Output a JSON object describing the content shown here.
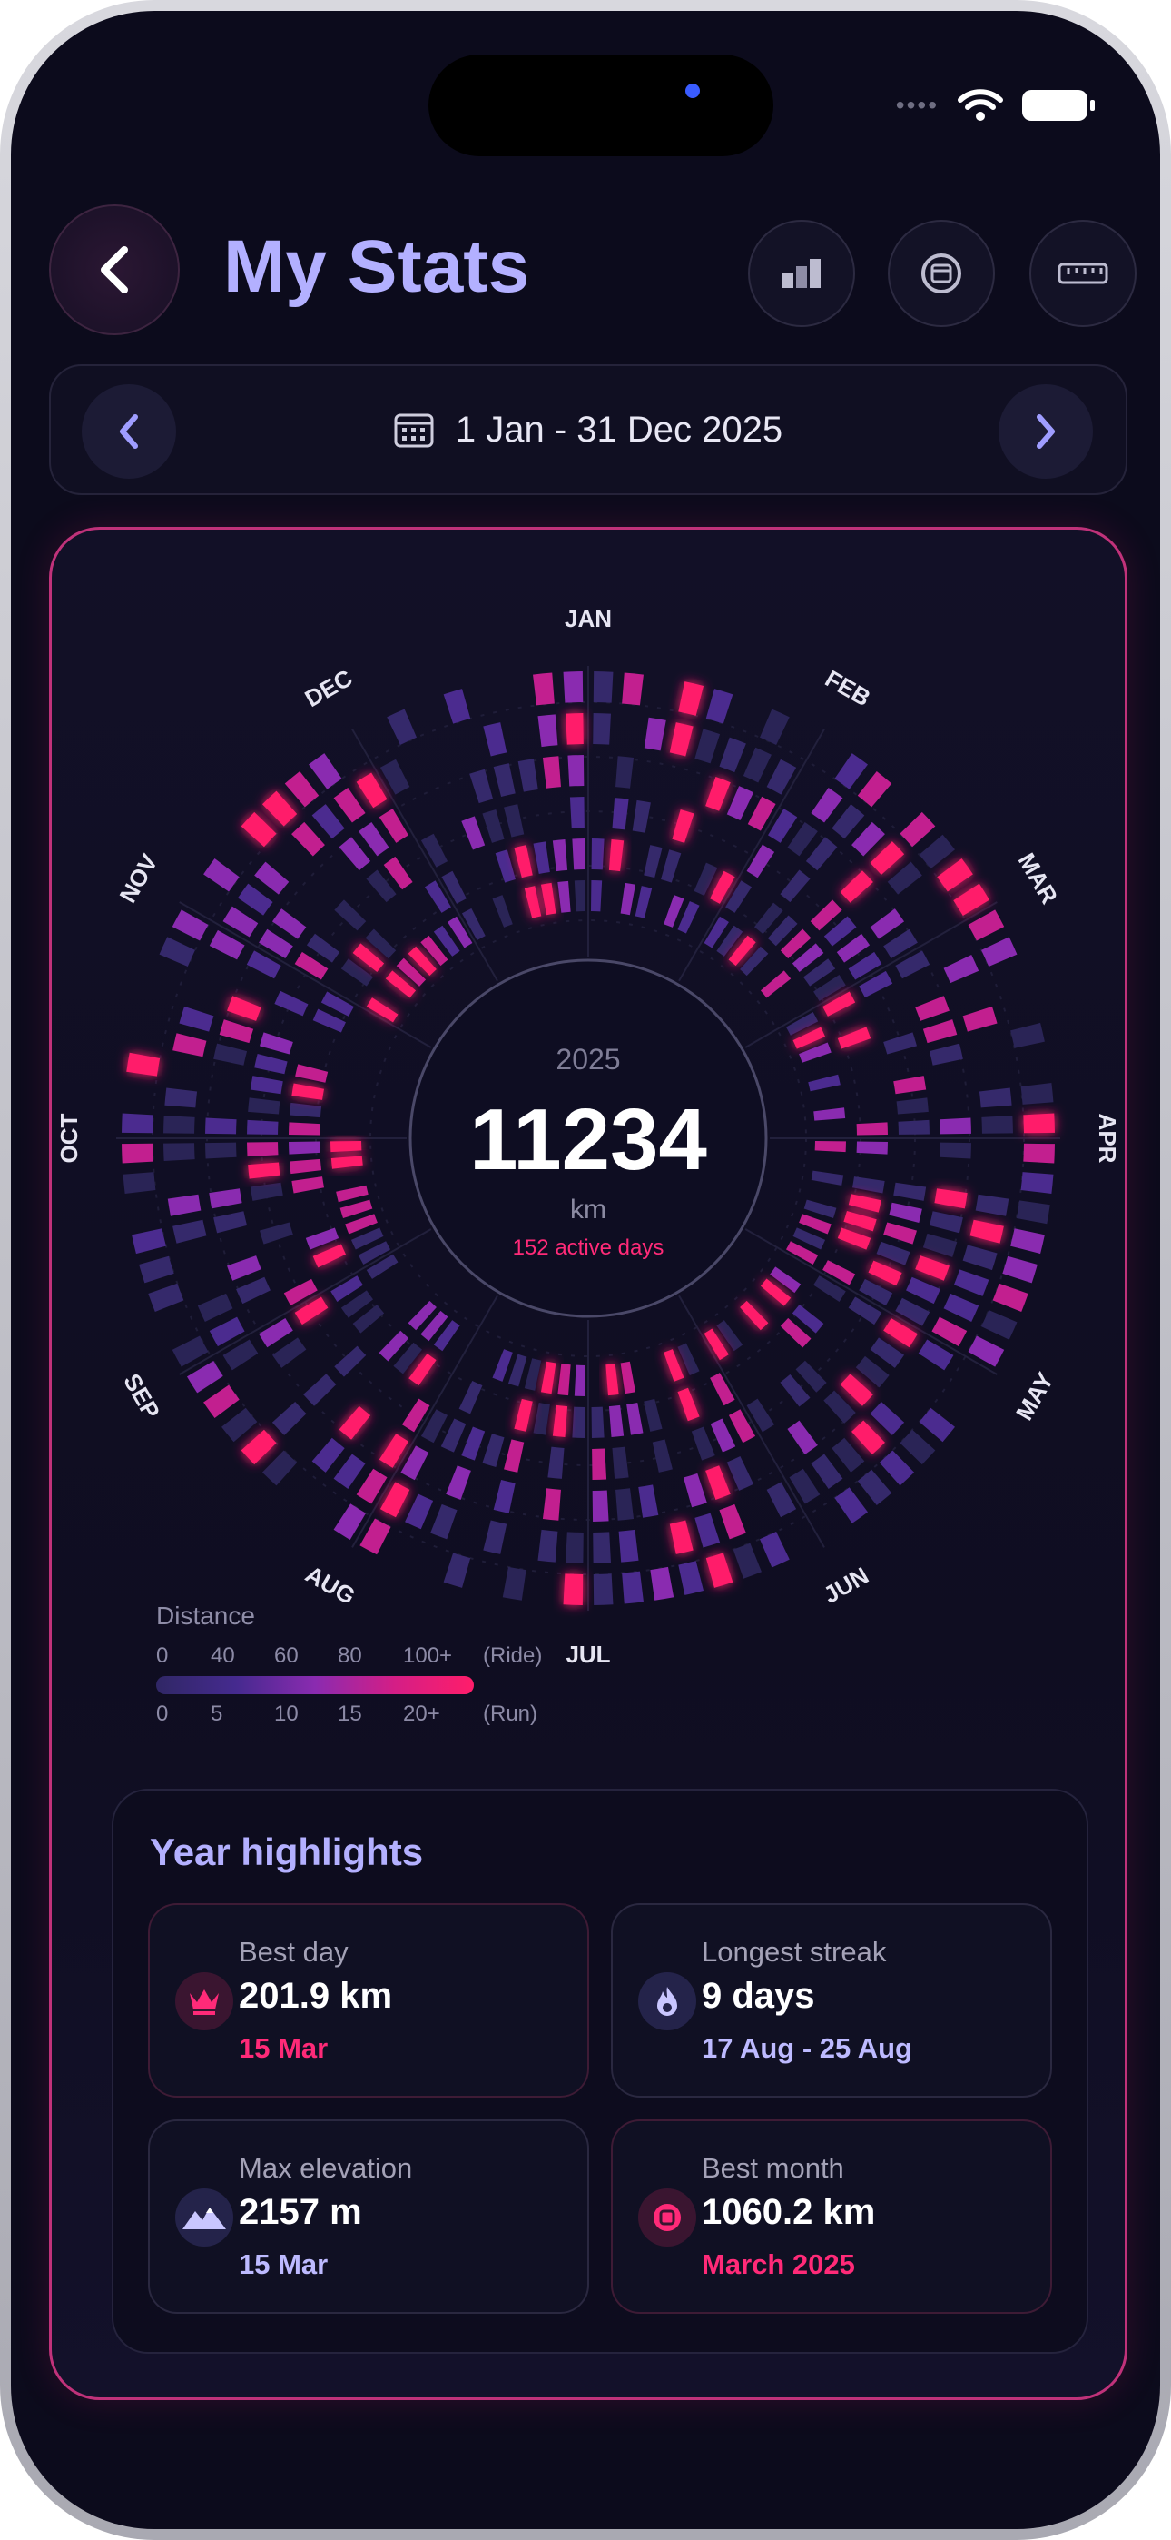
{
  "header": {
    "title": "My Stats",
    "icons": [
      "back-chevron-icon",
      "chart-cubes-icon",
      "calendar-icon",
      "ruler-icon"
    ]
  },
  "date_range": {
    "label": "1 Jan - 31 Dec 2025",
    "icons": [
      "prev-chevron-icon",
      "calendar-icon",
      "next-chevron-icon"
    ]
  },
  "center": {
    "year": "2025",
    "total": "11234",
    "unit": "km",
    "active_days": "152 active days"
  },
  "months": [
    "JAN",
    "FEB",
    "MAR",
    "APR",
    "MAY",
    "JUN",
    "JUL",
    "AUG",
    "SEP",
    "OCT",
    "NOV",
    "DEC"
  ],
  "legend": {
    "title": "Distance",
    "ride_ticks": [
      "0",
      "40",
      "60",
      "80",
      "100+"
    ],
    "ride_label": "(Ride)",
    "run_ticks": [
      "0",
      "5",
      "10",
      "15",
      "20+"
    ],
    "run_label": "(Run)"
  },
  "highlights": {
    "title": "Year highlights",
    "items": [
      {
        "label": "Best day",
        "value": "201.9 km",
        "sub": "15 Mar",
        "icon": "crown-icon"
      },
      {
        "label": "Longest streak",
        "value": "9 days",
        "sub": "17 Aug - 25 Aug",
        "icon": "flame-icon"
      },
      {
        "label": "Max elevation",
        "value": "2157 m",
        "sub": "15 Mar",
        "icon": "mountain-icon"
      },
      {
        "label": "Best month",
        "value": "1060.2 km",
        "sub": "March 2025",
        "icon": "calendar-badge-icon"
      }
    ]
  },
  "colors": {
    "accent_pink": "#ff1d6a",
    "accent_lavender": "#b3b0ff",
    "background": "#0c0b1c"
  }
}
